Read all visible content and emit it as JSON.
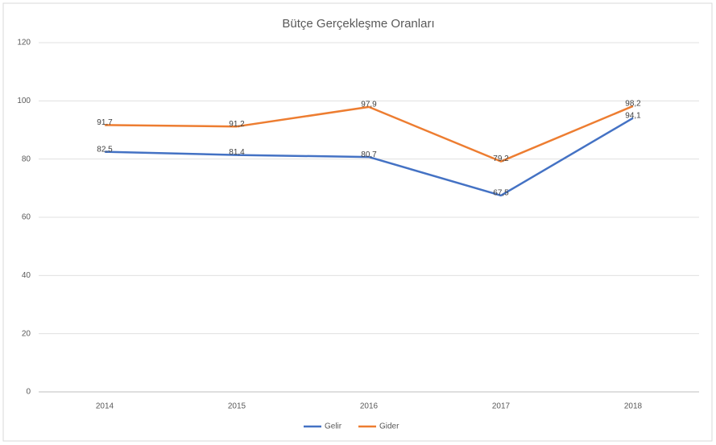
{
  "chart_data": {
    "type": "line",
    "title": "Bütçe Gerçekleşme Oranları",
    "categories": [
      "2014",
      "2015",
      "2016",
      "2017",
      "2018"
    ],
    "series": [
      {
        "name": "Gelir",
        "color": "#4472c4",
        "values": [
          82.5,
          81.4,
          80.7,
          67.5,
          94.1
        ],
        "value_labels": [
          "82,5",
          "81,4",
          "80,7",
          "67,5",
          "94,1"
        ]
      },
      {
        "name": "Gider",
        "color": "#ed7d31",
        "values": [
          91.7,
          91.2,
          97.9,
          79.2,
          98.2
        ],
        "value_labels": [
          "91,7",
          "91,2",
          "97,9",
          "79,2",
          "98,2"
        ]
      }
    ],
    "ylim": [
      0,
      120
    ],
    "yticks": [
      0,
      20,
      40,
      60,
      80,
      100,
      120
    ],
    "grid": true,
    "legend": "bottom"
  }
}
